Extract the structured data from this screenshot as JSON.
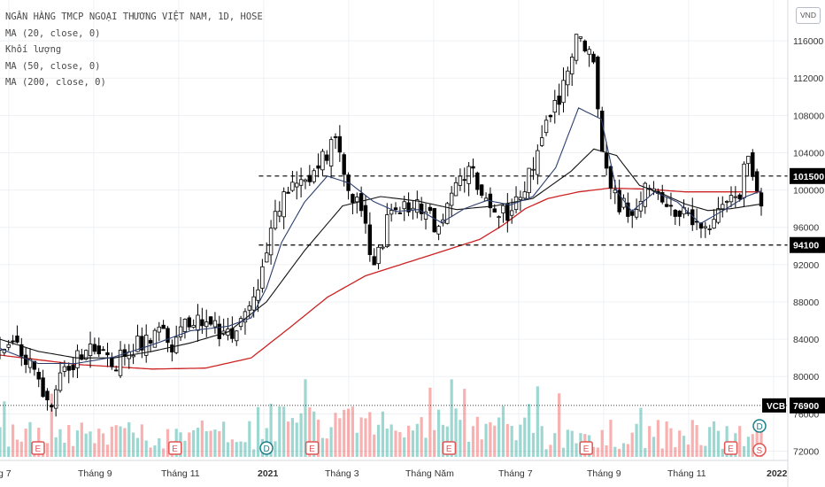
{
  "chart_data": {
    "type": "candlestick",
    "legend": [
      "NGÂN HÀNG TMCP NGOẠI THƯƠNG VIỆT NAM, 1D, HOSE",
      "MA (20, close, 0)",
      "Khối lượng",
      "MA (50, close, 0)",
      "MA (200, close, 0)"
    ],
    "currency_badge": "VND",
    "y_axis": {
      "ticks": [
        72000,
        76000,
        80000,
        84000,
        88000,
        92000,
        96000,
        100000,
        104000,
        108000,
        112000,
        116000
      ],
      "ylim": [
        71000,
        120000
      ]
    },
    "x_axis": {
      "labels": [
        {
          "text": "g 7",
          "bold": false
        },
        {
          "text": "Tháng 9",
          "bold": false
        },
        {
          "text": "Tháng 11",
          "bold": false
        },
        {
          "text": "2021",
          "bold": true
        },
        {
          "text": "Tháng 3",
          "bold": false
        },
        {
          "text": "Tháng Năm",
          "bold": false
        },
        {
          "text": "Tháng 7",
          "bold": false
        },
        {
          "text": "Tháng 9",
          "bold": false
        },
        {
          "text": "Tháng 11",
          "bold": false
        },
        {
          "text": "2022",
          "bold": true
        }
      ]
    },
    "levels": [
      {
        "value": 101500,
        "label": "101500",
        "style": "dashed"
      },
      {
        "value": 94100,
        "label": "94100",
        "style": "dashed"
      }
    ],
    "last_price": {
      "symbol": "VCB",
      "value": 76900,
      "label": "76900"
    },
    "price_path": [
      [
        0,
        82800
      ],
      [
        0.03,
        83200
      ],
      [
        0.05,
        79000
      ],
      [
        0.06,
        76200
      ],
      [
        0.08,
        80000
      ],
      [
        0.1,
        82000
      ],
      [
        0.13,
        82800
      ],
      [
        0.15,
        81400
      ],
      [
        0.18,
        83600
      ],
      [
        0.21,
        84800
      ],
      [
        0.23,
        83200
      ],
      [
        0.25,
        86200
      ],
      [
        0.28,
        85200
      ],
      [
        0.3,
        84000
      ],
      [
        0.33,
        87000
      ],
      [
        0.35,
        94000
      ],
      [
        0.37,
        98600
      ],
      [
        0.39,
        101200
      ],
      [
        0.41,
        102000
      ],
      [
        0.43,
        104000
      ],
      [
        0.44,
        105300
      ],
      [
        0.46,
        100400
      ],
      [
        0.48,
        96000
      ],
      [
        0.49,
        90500
      ],
      [
        0.51,
        97000
      ],
      [
        0.53,
        98300
      ],
      [
        0.56,
        97600
      ],
      [
        0.58,
        95600
      ],
      [
        0.6,
        100600
      ],
      [
        0.62,
        102000
      ],
      [
        0.64,
        98600
      ],
      [
        0.67,
        97600
      ],
      [
        0.69,
        101000
      ],
      [
        0.71,
        105000
      ],
      [
        0.74,
        111000
      ],
      [
        0.76,
        117000
      ],
      [
        0.78,
        114500
      ],
      [
        0.79,
        105000
      ],
      [
        0.81,
        98800
      ],
      [
        0.83,
        97500
      ],
      [
        0.85,
        100500
      ],
      [
        0.87,
        99200
      ],
      [
        0.89,
        98100
      ],
      [
        0.91,
        97100
      ],
      [
        0.93,
        95500
      ],
      [
        0.95,
        99400
      ],
      [
        0.97,
        98200
      ],
      [
        0.98,
        104500
      ],
      [
        1.0,
        98600
      ]
    ],
    "ma20_path": [
      [
        0,
        83000
      ],
      [
        0.05,
        81400
      ],
      [
        0.1,
        81400
      ],
      [
        0.15,
        82100
      ],
      [
        0.2,
        83400
      ],
      [
        0.25,
        84900
      ],
      [
        0.3,
        85400
      ],
      [
        0.33,
        86300
      ],
      [
        0.35,
        89500
      ],
      [
        0.37,
        94400
      ],
      [
        0.4,
        98700
      ],
      [
        0.43,
        101500
      ],
      [
        0.46,
        100700
      ],
      [
        0.49,
        98800
      ],
      [
        0.52,
        97700
      ],
      [
        0.55,
        97900
      ],
      [
        0.58,
        96500
      ],
      [
        0.61,
        98000
      ],
      [
        0.64,
        98900
      ],
      [
        0.67,
        98400
      ],
      [
        0.7,
        99300
      ],
      [
        0.73,
        102400
      ],
      [
        0.76,
        108800
      ],
      [
        0.79,
        107600
      ],
      [
        0.81,
        99900
      ],
      [
        0.83,
        97700
      ],
      [
        0.86,
        99800
      ],
      [
        0.89,
        98700
      ],
      [
        0.92,
        96400
      ],
      [
        0.95,
        97800
      ],
      [
        0.98,
        99300
      ],
      [
        1.0,
        99900
      ]
    ],
    "ma50_path": [
      [
        0,
        84000
      ],
      [
        0.05,
        82700
      ],
      [
        0.1,
        82000
      ],
      [
        0.15,
        82000
      ],
      [
        0.2,
        82700
      ],
      [
        0.25,
        83600
      ],
      [
        0.3,
        84800
      ],
      [
        0.35,
        88000
      ],
      [
        0.4,
        93500
      ],
      [
        0.45,
        98300
      ],
      [
        0.5,
        99300
      ],
      [
        0.55,
        98800
      ],
      [
        0.6,
        97900
      ],
      [
        0.65,
        98300
      ],
      [
        0.7,
        99100
      ],
      [
        0.75,
        102000
      ],
      [
        0.78,
        104400
      ],
      [
        0.81,
        103700
      ],
      [
        0.84,
        100500
      ],
      [
        0.87,
        99600
      ],
      [
        0.9,
        98500
      ],
      [
        0.93,
        97800
      ],
      [
        0.96,
        98000
      ],
      [
        1.0,
        98500
      ]
    ],
    "ma200_path": [
      [
        0,
        82300
      ],
      [
        0.1,
        81300
      ],
      [
        0.2,
        80800
      ],
      [
        0.27,
        80900
      ],
      [
        0.33,
        82000
      ],
      [
        0.38,
        85200
      ],
      [
        0.43,
        88500
      ],
      [
        0.48,
        90800
      ],
      [
        0.53,
        92100
      ],
      [
        0.58,
        93400
      ],
      [
        0.63,
        94700
      ],
      [
        0.66,
        96200
      ],
      [
        0.69,
        98000
      ],
      [
        0.72,
        99100
      ],
      [
        0.76,
        99800
      ],
      [
        0.8,
        100200
      ],
      [
        0.85,
        100100
      ],
      [
        0.9,
        99800
      ],
      [
        0.95,
        99800
      ],
      [
        1.0,
        99800
      ]
    ],
    "event_markers": [
      {
        "letter": "E",
        "kind": "earnings",
        "pos": 0.05
      },
      {
        "letter": "E",
        "kind": "earnings",
        "pos": 0.23
      },
      {
        "letter": "D",
        "kind": "dividend",
        "pos": 0.35
      },
      {
        "letter": "E",
        "kind": "earnings",
        "pos": 0.41
      },
      {
        "letter": "E",
        "kind": "earnings",
        "pos": 0.59
      },
      {
        "letter": "E",
        "kind": "earnings",
        "pos": 0.77
      },
      {
        "letter": "E",
        "kind": "earnings",
        "pos": 0.96
      },
      {
        "letter": "D",
        "kind": "dividend",
        "pos": 1.0
      },
      {
        "letter": "S",
        "kind": "split",
        "pos": 1.0
      }
    ]
  },
  "colors": {
    "up": "#26a69a",
    "down": "#ef5350",
    "candle": "#000000",
    "ma20": "#2c3e6e",
    "ma50": "#111111",
    "ma200": "#cc2222",
    "grid": "#eef0f4",
    "level": "#000000"
  }
}
